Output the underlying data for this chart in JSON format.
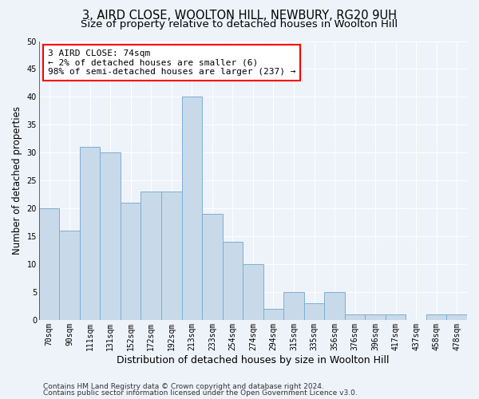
{
  "title": "3, AIRD CLOSE, WOOLTON HILL, NEWBURY, RG20 9UH",
  "subtitle": "Size of property relative to detached houses in Woolton Hill",
  "xlabel": "Distribution of detached houses by size in Woolton Hill",
  "ylabel": "Number of detached properties",
  "categories": [
    "70sqm",
    "90sqm",
    "111sqm",
    "131sqm",
    "152sqm",
    "172sqm",
    "192sqm",
    "213sqm",
    "233sqm",
    "254sqm",
    "274sqm",
    "294sqm",
    "315sqm",
    "335sqm",
    "356sqm",
    "376sqm",
    "396sqm",
    "417sqm",
    "437sqm",
    "458sqm",
    "478sqm"
  ],
  "values": [
    20,
    16,
    31,
    30,
    21,
    23,
    23,
    40,
    19,
    14,
    10,
    2,
    5,
    3,
    5,
    1,
    1,
    1,
    0,
    1,
    1
  ],
  "bar_color": "#c8daea",
  "bar_edge_color": "#7bafd4",
  "background_color": "#eef2f9",
  "plot_bg_color": "#eef2f9",
  "ylim": [
    0,
    50
  ],
  "yticks": [
    0,
    5,
    10,
    15,
    20,
    25,
    30,
    35,
    40,
    45,
    50
  ],
  "annotation_text": "3 AIRD CLOSE: 74sqm\n← 2% of detached houses are smaller (6)\n98% of semi-detached houses are larger (237) →",
  "footer_line1": "Contains HM Land Registry data © Crown copyright and database right 2024.",
  "footer_line2": "Contains public sector information licensed under the Open Government Licence v3.0.",
  "title_fontsize": 10.5,
  "subtitle_fontsize": 9.5,
  "tick_fontsize": 7,
  "ylabel_fontsize": 8.5,
  "xlabel_fontsize": 9,
  "annotation_fontsize": 8,
  "footer_fontsize": 6.5
}
